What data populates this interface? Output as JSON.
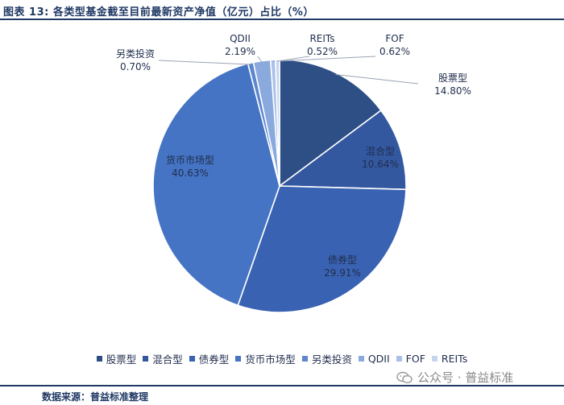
{
  "header": {
    "title": "图表 13:  各类型基金截至目前最新资产净值（亿元）占比（%）"
  },
  "footer": {
    "source": "数据来源：普益标准整理",
    "watermark": "公众号 · 普益标准"
  },
  "chart_data": {
    "type": "pie",
    "title": "图表 13:  各类型基金截至目前最新资产净值（亿元）占比（%）",
    "legend_position": "bottom",
    "slices": [
      {
        "name": "股票型",
        "value": 14.8,
        "label": "14.80%",
        "color": "#2e4f86"
      },
      {
        "name": "混合型",
        "value": 10.64,
        "label": "10.64%",
        "color": "#3458a0"
      },
      {
        "name": "债券型",
        "value": 29.91,
        "label": "29.91%",
        "color": "#3a62b2"
      },
      {
        "name": "货币市场型",
        "value": 40.63,
        "label": "40.63%",
        "color": "#4574c4"
      },
      {
        "name": "另类投资",
        "value": 0.7,
        "label": "0.70%",
        "color": "#5c86ce"
      },
      {
        "name": "QDII",
        "value": 2.19,
        "label": "2.19%",
        "color": "#8aaade"
      },
      {
        "name": "FOF",
        "value": 0.62,
        "label": "0.62%",
        "color": "#a9c0e8"
      },
      {
        "name": "REITs",
        "value": 0.52,
        "label": "0.52%",
        "color": "#c5d5f0"
      }
    ]
  }
}
